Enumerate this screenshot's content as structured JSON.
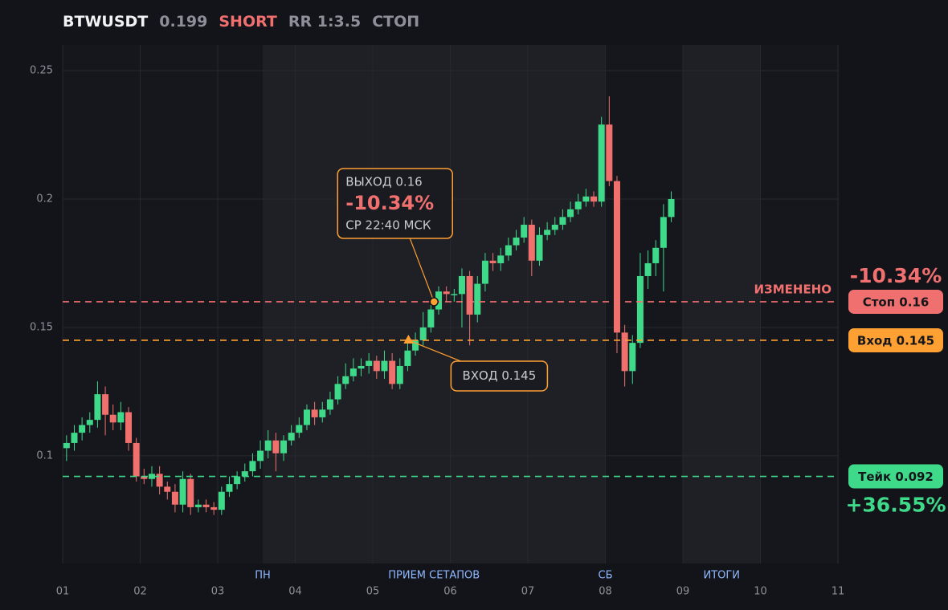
{
  "header": {
    "symbol": "BTWUSDT",
    "price": "0.199",
    "side": "SHORT",
    "rr": "RR 1:3.5",
    "status": "СТОП"
  },
  "chart_data": {
    "type": "candlestick",
    "x": [
      1.05,
      1.15,
      1.25,
      1.35,
      1.45,
      1.55,
      1.65,
      1.75,
      1.85,
      1.95,
      2.05,
      2.15,
      2.25,
      2.35,
      2.45,
      2.55,
      2.65,
      2.75,
      2.85,
      2.95,
      3.05,
      3.15,
      3.25,
      3.35,
      3.45,
      3.55,
      3.65,
      3.75,
      3.85,
      3.95,
      4.05,
      4.15,
      4.25,
      4.35,
      4.45,
      4.55,
      4.65,
      4.75,
      4.85,
      4.95,
      5.05,
      5.15,
      5.25,
      5.35,
      5.45,
      5.55,
      5.65,
      5.75,
      5.85,
      5.95,
      6.05,
      6.15,
      6.25,
      6.35,
      6.45,
      6.55,
      6.65,
      6.75,
      6.85,
      6.95,
      7.05,
      7.15,
      7.25,
      7.35,
      7.45,
      7.55,
      7.65,
      7.75,
      7.85,
      7.95,
      8.05,
      8.15,
      8.25,
      8.35,
      8.45,
      8.55,
      8.65,
      8.75,
      8.85
    ],
    "open": [
      0.103,
      0.105,
      0.109,
      0.112,
      0.114,
      0.124,
      0.116,
      0.113,
      0.117,
      0.105,
      0.092,
      0.091,
      0.093,
      0.088,
      0.086,
      0.081,
      0.091,
      0.08,
      0.081,
      0.08,
      0.079,
      0.086,
      0.089,
      0.092,
      0.094,
      0.098,
      0.102,
      0.106,
      0.101,
      0.106,
      0.109,
      0.112,
      0.118,
      0.115,
      0.118,
      0.122,
      0.128,
      0.131,
      0.134,
      0.135,
      0.137,
      0.133,
      0.137,
      0.128,
      0.135,
      0.141,
      0.145,
      0.15,
      0.157,
      0.164,
      0.163,
      0.163,
      0.17,
      0.155,
      0.167,
      0.176,
      0.175,
      0.178,
      0.182,
      0.185,
      0.19,
      0.176,
      0.186,
      0.188,
      0.19,
      0.193,
      0.196,
      0.199,
      0.201,
      0.199,
      0.229,
      0.207,
      0.148,
      0.133,
      0.144,
      0.17,
      0.175,
      0.181,
      0.193
    ],
    "high": [
      0.108,
      0.112,
      0.115,
      0.117,
      0.129,
      0.127,
      0.12,
      0.121,
      0.119,
      0.107,
      0.095,
      0.096,
      0.096,
      0.09,
      0.089,
      0.094,
      0.093,
      0.083,
      0.083,
      0.082,
      0.088,
      0.092,
      0.094,
      0.097,
      0.101,
      0.106,
      0.11,
      0.109,
      0.108,
      0.112,
      0.115,
      0.12,
      0.121,
      0.121,
      0.125,
      0.131,
      0.136,
      0.138,
      0.138,
      0.14,
      0.139,
      0.141,
      0.14,
      0.138,
      0.146,
      0.148,
      0.156,
      0.161,
      0.166,
      0.166,
      0.165,
      0.173,
      0.172,
      0.17,
      0.179,
      0.179,
      0.181,
      0.185,
      0.188,
      0.193,
      0.192,
      0.189,
      0.191,
      0.193,
      0.196,
      0.199,
      0.202,
      0.204,
      0.203,
      0.232,
      0.24,
      0.209,
      0.151,
      0.147,
      0.179,
      0.18,
      0.184,
      0.198,
      0.203
    ],
    "low": [
      0.098,
      0.102,
      0.106,
      0.109,
      0.111,
      0.108,
      0.11,
      0.11,
      0.102,
      0.09,
      0.089,
      0.088,
      0.085,
      0.083,
      0.078,
      0.078,
      0.077,
      0.078,
      0.078,
      0.077,
      0.077,
      0.084,
      0.087,
      0.09,
      0.092,
      0.095,
      0.099,
      0.094,
      0.098,
      0.104,
      0.107,
      0.11,
      0.112,
      0.113,
      0.116,
      0.12,
      0.126,
      0.129,
      0.131,
      0.132,
      0.13,
      0.13,
      0.126,
      0.126,
      0.133,
      0.139,
      0.143,
      0.148,
      0.155,
      0.16,
      0.16,
      0.15,
      0.143,
      0.152,
      0.164,
      0.172,
      0.172,
      0.176,
      0.18,
      0.183,
      0.17,
      0.174,
      0.184,
      0.186,
      0.188,
      0.191,
      0.194,
      0.197,
      0.197,
      0.197,
      0.205,
      0.14,
      0.127,
      0.128,
      0.142,
      0.165,
      0.17,
      0.164,
      0.191
    ],
    "close": [
      0.105,
      0.109,
      0.112,
      0.114,
      0.124,
      0.116,
      0.113,
      0.117,
      0.105,
      0.092,
      0.091,
      0.093,
      0.088,
      0.086,
      0.081,
      0.091,
      0.08,
      0.081,
      0.08,
      0.079,
      0.086,
      0.089,
      0.092,
      0.094,
      0.098,
      0.102,
      0.106,
      0.101,
      0.106,
      0.109,
      0.112,
      0.118,
      0.115,
      0.118,
      0.122,
      0.128,
      0.131,
      0.134,
      0.135,
      0.137,
      0.133,
      0.137,
      0.128,
      0.135,
      0.141,
      0.145,
      0.15,
      0.157,
      0.164,
      0.163,
      0.163,
      0.17,
      0.155,
      0.167,
      0.176,
      0.175,
      0.178,
      0.182,
      0.185,
      0.19,
      0.176,
      0.186,
      0.188,
      0.19,
      0.193,
      0.196,
      0.199,
      0.201,
      0.199,
      0.229,
      0.207,
      0.148,
      0.133,
      0.144,
      0.17,
      0.175,
      0.181,
      0.193,
      0.2
    ],
    "up_color": "#3fd98a",
    "down_color": "#f0706d",
    "xlim": [
      1,
      11
    ],
    "xticks": [
      {
        "value": 1,
        "label": "01"
      },
      {
        "value": 2,
        "label": "02"
      },
      {
        "value": 3,
        "label": "03"
      },
      {
        "value": 4,
        "label": "04"
      },
      {
        "value": 5,
        "label": "05"
      },
      {
        "value": 6,
        "label": "06"
      },
      {
        "value": 7,
        "label": "07"
      },
      {
        "value": 8,
        "label": "08"
      },
      {
        "value": 9,
        "label": "09"
      },
      {
        "value": 10,
        "label": "10"
      },
      {
        "value": 11,
        "label": "11"
      }
    ],
    "ylim": [
      0.0581,
      0.26
    ],
    "yticks": [
      0.1,
      0.15,
      0.2,
      0.25
    ],
    "grid": true,
    "regions": [
      {
        "x0": 3.58,
        "x1": 8,
        "label": "ПРИЕМ СЕТАПОВ"
      },
      {
        "x0": 9,
        "x1": 10,
        "label": "ИТОГИ"
      }
    ],
    "markers": [
      {
        "x": 3.58,
        "label": "ПН"
      },
      {
        "x": 8,
        "label": "СБ"
      }
    ],
    "levels": [
      {
        "value": 0.16,
        "label": "Стоп 0.16",
        "color": "#f07070",
        "note": "ИЗМЕНЕНО",
        "result": {
          "value": -10.34,
          "label": "-10.34%"
        }
      },
      {
        "value": 0.145,
        "label": "Вход 0.145",
        "color": "#ffa033"
      },
      {
        "value": 0.092,
        "label": "Тейк 0.092",
        "color": "#3fd98a",
        "result": {
          "value": 36.55,
          "label": "+36.55%"
        }
      }
    ],
    "annotations": [
      {
        "x": 5.79,
        "y": 0.16,
        "shape": "circle",
        "lines": [
          "ВЫХОД 0.16",
          "-10.34%",
          "СР 22:40 МСК"
        ]
      },
      {
        "x": 5.46,
        "y": 0.145,
        "shape": "triangle",
        "lines": [
          "ВХОД 0.145"
        ]
      }
    ]
  }
}
